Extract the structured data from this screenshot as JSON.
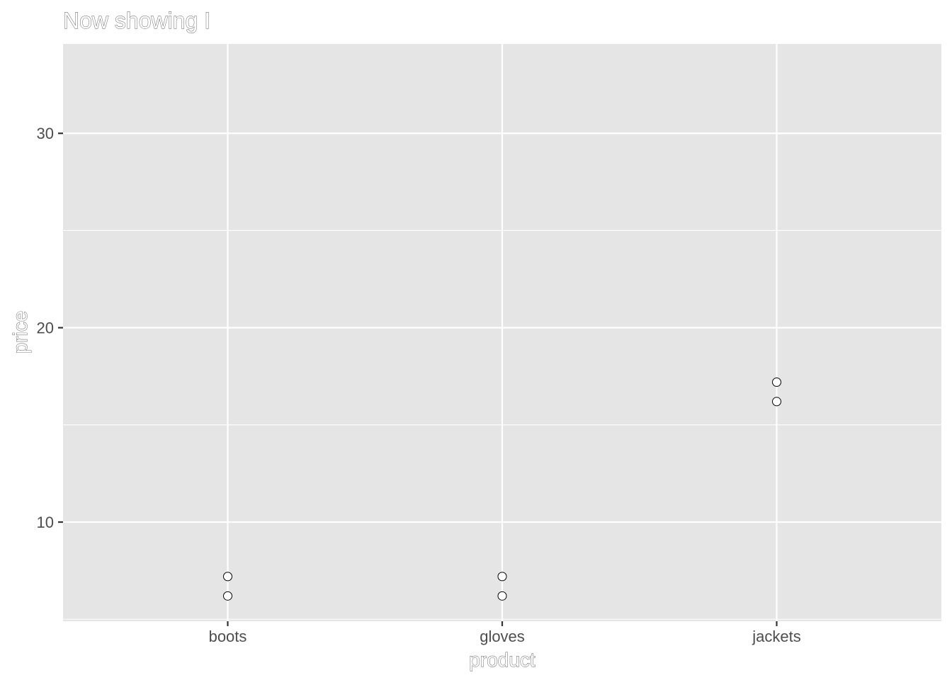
{
  "chart_data": {
    "type": "scatter",
    "title": "Now showing I",
    "xlabel": "product",
    "ylabel": "price",
    "categories": [
      "boots",
      "gloves",
      "jackets"
    ],
    "points": [
      {
        "x": "boots",
        "y": 7.2
      },
      {
        "x": "boots",
        "y": 6.2
      },
      {
        "x": "gloves",
        "y": 7.2
      },
      {
        "x": "gloves",
        "y": 6.2
      },
      {
        "x": "jackets",
        "y": 17.2
      },
      {
        "x": "jackets",
        "y": 16.2
      }
    ],
    "yticks": [
      10,
      20,
      30
    ],
    "ylim": [
      4.9,
      34.6
    ],
    "grid": true,
    "legend": "none",
    "colors": {
      "panel": "#e5e5e5",
      "grid": "#ffffff",
      "point_fill": "#ffffff",
      "point_stroke": "#000000",
      "tick_text": "#4d4d4d"
    }
  }
}
